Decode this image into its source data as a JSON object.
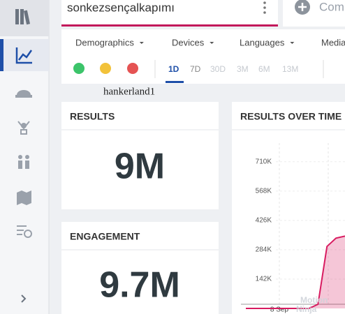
{
  "search": {
    "query": "sonkezsençalkapımı"
  },
  "compose": {
    "label": "Com"
  },
  "filters": [
    "Demographics",
    "Devices",
    "Languages",
    "Media"
  ],
  "time_ranges": [
    "1D",
    "7D",
    "30D",
    "3M",
    "6M",
    "13M"
  ],
  "watermark": "hankerland1",
  "cards": [
    {
      "title": "RESULTS",
      "value": "9M"
    },
    {
      "title": "ENGAGEMENT",
      "value": "9.7M"
    }
  ],
  "chart": {
    "title": "RESULTS OVER TIME",
    "ylim": [
      0,
      760000
    ],
    "yticks": [
      {
        "value": 142000,
        "label": "142K"
      },
      {
        "value": 284000,
        "label": "284K"
      },
      {
        "value": 426000,
        "label": "426K"
      },
      {
        "value": 568000,
        "label": "568K"
      },
      {
        "value": 710000,
        "label": "710K"
      }
    ],
    "x_label": "8 Sep",
    "values": [
      0,
      0,
      0,
      0,
      0,
      0,
      0,
      0,
      20000,
      300000,
      340000,
      350000
    ],
    "color": "#d81b60"
  },
  "overlay_text": [
    "Motion",
    "Ninja"
  ]
}
